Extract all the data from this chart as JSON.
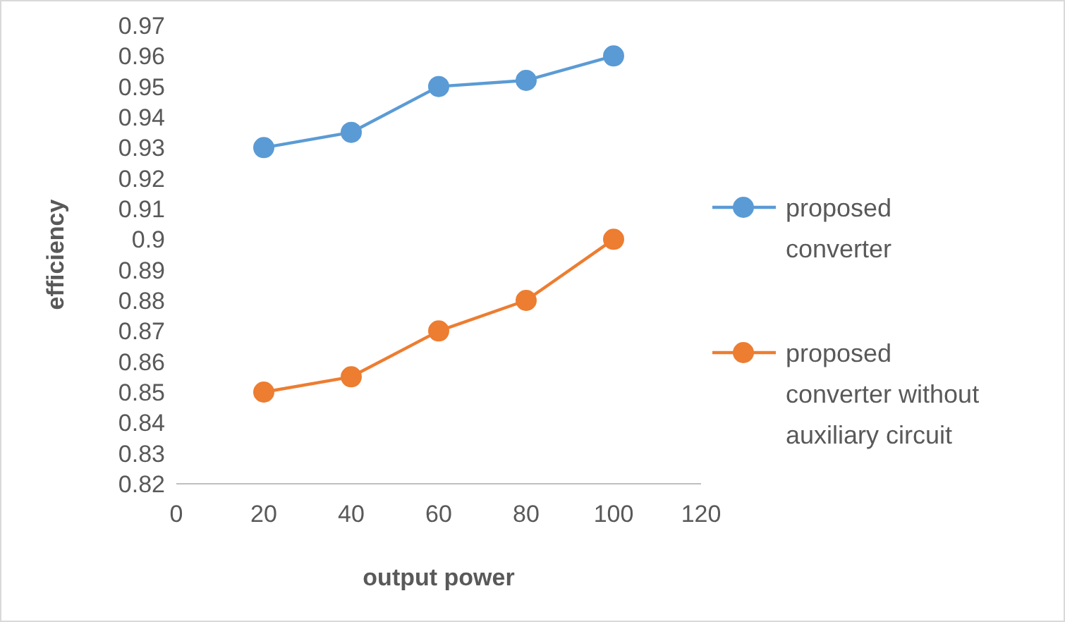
{
  "chart_data": {
    "type": "line",
    "xlabel": "output power",
    "ylabel": "efficiency",
    "x": [
      20,
      40,
      60,
      80,
      100
    ],
    "series": [
      {
        "name": "proposed converter",
        "color": "#5b9bd5",
        "values": [
          0.93,
          0.935,
          0.95,
          0.952,
          0.96
        ]
      },
      {
        "name": "proposed converter without auxiliary circuit",
        "color": "#ed7d31",
        "values": [
          0.85,
          0.855,
          0.87,
          0.88,
          0.9
        ]
      }
    ],
    "xlim": [
      0,
      120
    ],
    "xticks": [
      0,
      20,
      40,
      60,
      80,
      100,
      120
    ],
    "ylim": [
      0.82,
      0.97
    ],
    "yticks": [
      0.82,
      0.83,
      0.84,
      0.85,
      0.86,
      0.87,
      0.88,
      0.89,
      0.9,
      0.91,
      0.92,
      0.93,
      0.94,
      0.95,
      0.96,
      0.97
    ],
    "grid": false,
    "legend": "right",
    "marker": "circle",
    "line_style": "solid"
  }
}
